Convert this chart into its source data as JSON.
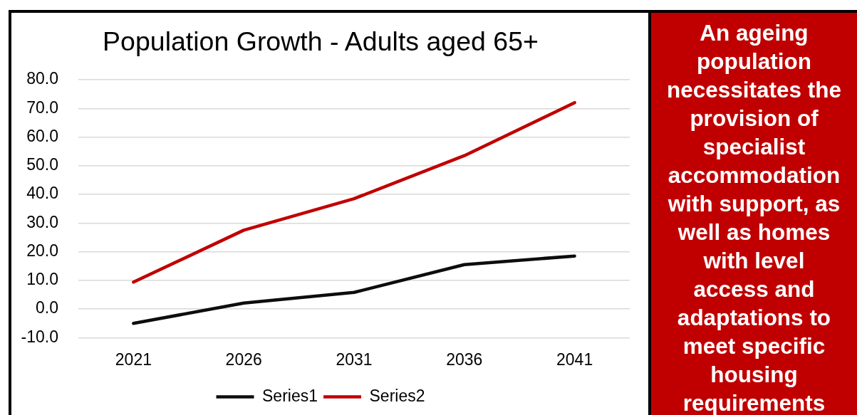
{
  "chart_data": {
    "type": "line",
    "title": "Population Growth - Adults aged 65+",
    "categories": [
      "2021",
      "2026",
      "2031",
      "2036",
      "2041"
    ],
    "series": [
      {
        "name": "Series1",
        "color": "#0d0d0d",
        "values": [
          -5.0,
          2.1,
          5.8,
          15.5,
          18.5
        ]
      },
      {
        "name": "Series2",
        "color": "#c00000",
        "values": [
          9.4,
          27.5,
          38.5,
          53.5,
          72.0
        ]
      }
    ],
    "ylim": [
      -10,
      80
    ],
    "yticks": [
      {
        "value": -10,
        "label": "-10.0"
      },
      {
        "value": 0,
        "label": "0.0"
      },
      {
        "value": 10,
        "label": "10.0"
      },
      {
        "value": 20,
        "label": "20.0"
      },
      {
        "value": 30,
        "label": "30.0"
      },
      {
        "value": 40,
        "label": "40.0"
      },
      {
        "value": 50,
        "label": "50.0"
      },
      {
        "value": 60,
        "label": "60.0"
      },
      {
        "value": 70,
        "label": "70.0"
      },
      {
        "value": 80,
        "label": "80.0"
      }
    ],
    "grid": "y",
    "legend": "bottom",
    "marker": "none",
    "annotations": [
      "An ageing population necessitates the provision of specialist accommodation with support, as well as homes with level access and adaptations to meet specific housing requirements"
    ]
  }
}
